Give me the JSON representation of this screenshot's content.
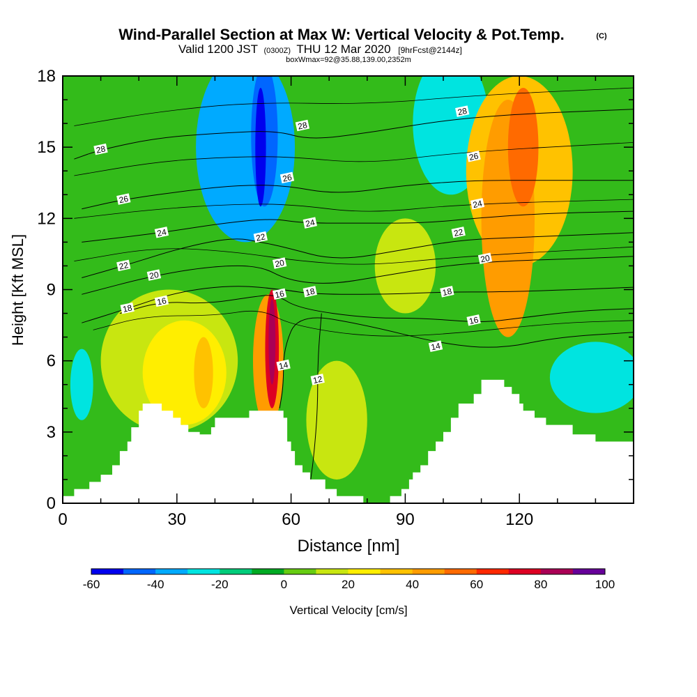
{
  "title": {
    "main": "Wind-Parallel Section at Max W: Vertical Velocity & Pot.Temp.",
    "copyright": "(C)",
    "valid_prefix": "Valid 1200 JST",
    "valid_utc": "(0300Z)",
    "valid_date": "THU 12 Mar 2020",
    "forecast": "[9hrFcst@2144z]",
    "box": "boxWmax=92@35.88,139.00,2352m"
  },
  "chart_data": {
    "type": "heatmap",
    "xlabel": "Distance [nm]",
    "ylabel": "Height [Kft MSL]",
    "xlim": [
      0,
      150
    ],
    "ylim": [
      0,
      18
    ],
    "x_ticks": [
      "0",
      "30",
      "60",
      "90",
      "120"
    ],
    "y_ticks": [
      "0",
      "3",
      "6",
      "9",
      "12",
      "15",
      "18"
    ],
    "x_tick_values": [
      0,
      30,
      60,
      90,
      120
    ],
    "y_tick_values": [
      0,
      3,
      6,
      9,
      12,
      15,
      18
    ],
    "colorbar": {
      "label": "Vertical Velocity [cm/s]",
      "levels": [
        -60,
        -50,
        -40,
        -30,
        -20,
        -10,
        0,
        10,
        20,
        30,
        40,
        50,
        60,
        70,
        80,
        90,
        100
      ],
      "tick_labels": [
        "-60",
        "-40",
        "-20",
        "0",
        "20",
        "40",
        "60",
        "80",
        "100"
      ],
      "tick_values": [
        -60,
        -40,
        -20,
        0,
        20,
        40,
        60,
        80,
        100
      ],
      "colors": [
        "#0000ee",
        "#0066ff",
        "#00aaff",
        "#00e4e0",
        "#00cc7a",
        "#00aa22",
        "#66cc11",
        "#c8e610",
        "#ffee00",
        "#ffc200",
        "#ff9c00",
        "#ff6a00",
        "#ff2800",
        "#dd0022",
        "#aa0055",
        "#660099"
      ]
    },
    "terrain": [
      [
        0,
        0.3
      ],
      [
        3,
        0.3
      ],
      [
        3,
        0.6
      ],
      [
        7,
        0.6
      ],
      [
        7,
        0.9
      ],
      [
        10,
        0.9
      ],
      [
        10,
        1.2
      ],
      [
        13,
        1.2
      ],
      [
        13,
        1.6
      ],
      [
        15,
        1.6
      ],
      [
        15,
        2.2
      ],
      [
        17,
        2.2
      ],
      [
        17,
        2.6
      ],
      [
        18,
        2.6
      ],
      [
        18,
        3.2
      ],
      [
        20,
        3.2
      ],
      [
        20,
        3.9
      ],
      [
        21,
        3.9
      ],
      [
        21,
        4.2
      ],
      [
        26,
        4.2
      ],
      [
        26,
        3.9
      ],
      [
        29,
        3.9
      ],
      [
        29,
        3.6
      ],
      [
        31,
        3.6
      ],
      [
        31,
        3.3
      ],
      [
        33,
        3.3
      ],
      [
        33,
        3.0
      ],
      [
        36,
        3.0
      ],
      [
        36,
        2.9
      ],
      [
        39,
        2.9
      ],
      [
        39,
        3.2
      ],
      [
        40,
        3.2
      ],
      [
        40,
        3.6
      ],
      [
        49,
        3.6
      ],
      [
        49,
        3.9
      ],
      [
        58,
        3.9
      ],
      [
        58,
        3.6
      ],
      [
        59,
        3.6
      ],
      [
        59,
        2.6
      ],
      [
        60,
        2.6
      ],
      [
        60,
        2.2
      ],
      [
        61,
        2.2
      ],
      [
        61,
        1.6
      ],
      [
        63,
        1.6
      ],
      [
        63,
        1.3
      ],
      [
        65,
        1.3
      ],
      [
        65,
        1.0
      ],
      [
        69,
        1.0
      ],
      [
        69,
        0.6
      ],
      [
        72,
        0.6
      ],
      [
        72,
        0.3
      ],
      [
        79,
        0.3
      ],
      [
        79,
        0.0
      ],
      [
        86,
        0.0
      ],
      [
        86,
        0.3
      ],
      [
        89,
        0.3
      ],
      [
        89,
        0.6
      ],
      [
        91,
        0.6
      ],
      [
        91,
        1.0
      ],
      [
        92,
        1.0
      ],
      [
        92,
        1.3
      ],
      [
        94,
        1.3
      ],
      [
        94,
        1.6
      ],
      [
        96,
        1.6
      ],
      [
        96,
        2.2
      ],
      [
        98,
        2.2
      ],
      [
        98,
        2.6
      ],
      [
        100,
        2.6
      ],
      [
        100,
        3.0
      ],
      [
        102,
        3.0
      ],
      [
        102,
        3.6
      ],
      [
        104,
        3.6
      ],
      [
        104,
        4.2
      ],
      [
        108,
        4.2
      ],
      [
        108,
        4.6
      ],
      [
        110,
        4.6
      ],
      [
        110,
        5.2
      ],
      [
        116,
        5.2
      ],
      [
        116,
        4.9
      ],
      [
        118,
        4.9
      ],
      [
        118,
        4.6
      ],
      [
        120,
        4.6
      ],
      [
        120,
        4.2
      ],
      [
        121,
        4.2
      ],
      [
        121,
        3.9
      ],
      [
        124,
        3.9
      ],
      [
        124,
        3.6
      ],
      [
        127,
        3.6
      ],
      [
        127,
        3.3
      ],
      [
        134,
        3.3
      ],
      [
        134,
        2.9
      ],
      [
        140,
        2.9
      ],
      [
        140,
        2.6
      ],
      [
        150,
        2.6
      ]
    ],
    "blobs": [
      {
        "x": 5,
        "y": 5,
        "rx": 3,
        "ry": 1.5,
        "v": -25
      },
      {
        "x": 48,
        "y": 15,
        "rx": 13,
        "ry": 4,
        "v": -35
      },
      {
        "x": 53,
        "y": 15.5,
        "rx": 3.5,
        "ry": 3,
        "v": -45
      },
      {
        "x": 52,
        "y": 15,
        "rx": 1.4,
        "ry": 2.5,
        "v": -58
      },
      {
        "x": 102,
        "y": 16,
        "rx": 10,
        "ry": 3,
        "v": -25
      },
      {
        "x": 140,
        "y": 5.3,
        "rx": 12,
        "ry": 1.5,
        "v": -25
      },
      {
        "x": 28,
        "y": 6,
        "rx": 18,
        "ry": 3,
        "v": 15
      },
      {
        "x": 32,
        "y": 5.5,
        "rx": 11,
        "ry": 2.2,
        "v": 25
      },
      {
        "x": 37,
        "y": 5.5,
        "rx": 2.5,
        "ry": 1.5,
        "v": 35
      },
      {
        "x": 54,
        "y": 6,
        "rx": 4,
        "ry": 2.8,
        "v": 40
      },
      {
        "x": 55,
        "y": 6.5,
        "rx": 1.8,
        "ry": 2.5,
        "v": 70
      },
      {
        "x": 55,
        "y": 6.8,
        "rx": 0.9,
        "ry": 1.8,
        "v": 85
      },
      {
        "x": 72,
        "y": 3.5,
        "rx": 8,
        "ry": 2.5,
        "v": 15
      },
      {
        "x": 120,
        "y": 14,
        "rx": 14,
        "ry": 4,
        "v": 30
      },
      {
        "x": 117,
        "y": 12,
        "rx": 7,
        "ry": 5,
        "v": 45
      },
      {
        "x": 121,
        "y": 15,
        "rx": 4,
        "ry": 2.5,
        "v": 58
      },
      {
        "x": 90,
        "y": 10,
        "rx": 8,
        "ry": 2,
        "v": 15
      }
    ],
    "theta_contours": [
      {
        "level": "12",
        "label_at": [
          67,
          5.2
        ],
        "pts": [
          [
            65,
            0.8
          ],
          [
            66,
            2
          ],
          [
            67,
            4
          ],
          [
            67,
            6
          ],
          [
            68,
            8
          ]
        ]
      },
      {
        "level": "14",
        "label_at": [
          58,
          5.8
        ],
        "pts": [
          [
            57,
            4
          ],
          [
            58,
            5
          ],
          [
            58,
            6.5
          ],
          [
            62,
            8
          ],
          [
            80,
            7.5
          ],
          [
            100,
            6.7
          ],
          [
            115,
            6.5
          ],
          [
            130,
            7
          ],
          [
            150,
            7.2
          ]
        ]
      },
      {
        "level": "16",
        "label_at": [
          26,
          8.5
        ],
        "pts": [
          [
            15,
            8
          ],
          [
            26,
            8.5
          ],
          [
            38,
            8.4
          ],
          [
            50,
            8.7
          ],
          [
            56,
            8.8
          ],
          [
            62,
            8.2
          ],
          [
            80,
            7.8
          ],
          [
            95,
            7.8
          ],
          [
            110,
            7.6
          ],
          [
            120,
            7.8
          ],
          [
            135,
            8.1
          ],
          [
            150,
            8.2
          ]
        ]
      },
      {
        "level": "18",
        "label_at": [
          17,
          8.2
        ],
        "pts": [
          [
            5,
            7.6
          ],
          [
            17,
            8.2
          ],
          [
            30,
            8.9
          ],
          [
            45,
            9.2
          ],
          [
            58,
            9.0
          ],
          [
            66,
            8.8
          ],
          [
            85,
            8.8
          ],
          [
            100,
            8.9
          ],
          [
            115,
            8.9
          ],
          [
            135,
            9.0
          ],
          [
            150,
            9.1
          ]
        ]
      },
      {
        "level": "20",
        "label_at": [
          24,
          9.6
        ],
        "pts": [
          [
            5,
            8.8
          ],
          [
            24,
            9.6
          ],
          [
            40,
            10.0
          ],
          [
            52,
            10.0
          ],
          [
            59,
            9.4
          ],
          [
            70,
            9.2
          ],
          [
            85,
            9.6
          ],
          [
            100,
            10.0
          ],
          [
            115,
            10.2
          ],
          [
            135,
            10.3
          ],
          [
            150,
            10.4
          ]
        ]
      },
      {
        "level": "22",
        "label_at": [
          16,
          10.0
        ],
        "pts": [
          [
            5,
            9.5
          ],
          [
            16,
            10.0
          ],
          [
            32,
            10.8
          ],
          [
            45,
            11.2
          ],
          [
            52,
            11.0
          ],
          [
            58,
            10.8
          ],
          [
            72,
            10.2
          ],
          [
            90,
            10.7
          ],
          [
            105,
            11.1
          ],
          [
            120,
            11.2
          ],
          [
            150,
            11.4
          ]
        ]
      },
      {
        "level": "24",
        "label_at": [
          26,
          11.4
        ],
        "pts": [
          [
            5,
            11.0
          ],
          [
            26,
            11.4
          ],
          [
            42,
            11.8
          ],
          [
            55,
            12.0
          ],
          [
            63,
            11.8
          ],
          [
            80,
            11.8
          ],
          [
            95,
            11.8
          ],
          [
            108,
            12.0
          ],
          [
            125,
            12.2
          ],
          [
            150,
            12.3
          ]
        ]
      },
      {
        "level": "26",
        "label_at": [
          16,
          12.8
        ],
        "pts": [
          [
            5,
            12.4
          ],
          [
            16,
            12.8
          ],
          [
            34,
            13.2
          ],
          [
            46,
            13.4
          ],
          [
            58,
            13.4
          ],
          [
            72,
            13.0
          ],
          [
            90,
            13.4
          ],
          [
            108,
            13.6
          ],
          [
            125,
            13.6
          ],
          [
            150,
            13.6
          ]
        ]
      },
      {
        "level": "28",
        "label_at": [
          10,
          14.9
        ],
        "pts": [
          [
            3,
            14.5
          ],
          [
            10,
            14.9
          ],
          [
            25,
            15.4
          ],
          [
            42,
            15.6
          ],
          [
            56,
            15.7
          ],
          [
            65,
            15.3
          ],
          [
            80,
            15.6
          ],
          [
            95,
            16.0
          ],
          [
            105,
            16.2
          ],
          [
            120,
            16.4
          ],
          [
            150,
            16.6
          ]
        ]
      }
    ],
    "extra_contours": [
      [
        [
          3,
          15.9
        ],
        [
          25,
          16.5
        ],
        [
          50,
          16.9
        ],
        [
          80,
          16.8
        ],
        [
          110,
          17.2
        ],
        [
          150,
          17.5
        ]
      ],
      [
        [
          3,
          13.8
        ],
        [
          25,
          14.4
        ],
        [
          45,
          14.6
        ],
        [
          60,
          14.6
        ],
        [
          80,
          14.3
        ],
        [
          105,
          14.8
        ],
        [
          150,
          15.2
        ]
      ],
      [
        [
          3,
          12.0
        ],
        [
          25,
          12.4
        ],
        [
          45,
          12.6
        ],
        [
          60,
          12.6
        ],
        [
          80,
          12.2
        ],
        [
          105,
          12.6
        ],
        [
          150,
          12.8
        ]
      ],
      [
        [
          3,
          10.2
        ],
        [
          25,
          10.8
        ],
        [
          45,
          10.6
        ],
        [
          62,
          10.2
        ],
        [
          80,
          10.0
        ],
        [
          105,
          10.4
        ],
        [
          150,
          10.8
        ]
      ],
      [
        [
          8,
          7.3
        ],
        [
          22,
          7.9
        ],
        [
          40,
          7.9
        ],
        [
          52,
          8.2
        ],
        [
          60,
          7.5
        ],
        [
          80,
          7.0
        ],
        [
          100,
          7.1
        ],
        [
          130,
          7.6
        ],
        [
          150,
          7.7
        ]
      ]
    ],
    "label_positions": [
      {
        "t": "28",
        "x": 10,
        "y": 14.9
      },
      {
        "t": "26",
        "x": 16,
        "y": 12.8
      },
      {
        "t": "24",
        "x": 26,
        "y": 11.4
      },
      {
        "t": "22",
        "x": 16,
        "y": 10.0
      },
      {
        "t": "20",
        "x": 24,
        "y": 9.6
      },
      {
        "t": "18",
        "x": 17,
        "y": 8.2
      },
      {
        "t": "16",
        "x": 26,
        "y": 8.5
      },
      {
        "t": "28",
        "x": 63,
        "y": 15.9
      },
      {
        "t": "26",
        "x": 59,
        "y": 13.7
      },
      {
        "t": "24",
        "x": 65,
        "y": 11.8
      },
      {
        "t": "22",
        "x": 52,
        "y": 11.2
      },
      {
        "t": "20",
        "x": 57,
        "y": 10.1
      },
      {
        "t": "16",
        "x": 57,
        "y": 8.8
      },
      {
        "t": "18",
        "x": 65,
        "y": 8.9
      },
      {
        "t": "14",
        "x": 58,
        "y": 5.8
      },
      {
        "t": "12",
        "x": 67,
        "y": 5.2
      },
      {
        "t": "28",
        "x": 105,
        "y": 16.5
      },
      {
        "t": "26",
        "x": 108,
        "y": 14.6
      },
      {
        "t": "24",
        "x": 109,
        "y": 12.6
      },
      {
        "t": "22",
        "x": 104,
        "y": 11.4
      },
      {
        "t": "20",
        "x": 111,
        "y": 10.3
      },
      {
        "t": "18",
        "x": 101,
        "y": 8.9
      },
      {
        "t": "16",
        "x": 108,
        "y": 7.7
      },
      {
        "t": "14",
        "x": 98,
        "y": 6.6
      }
    ]
  }
}
